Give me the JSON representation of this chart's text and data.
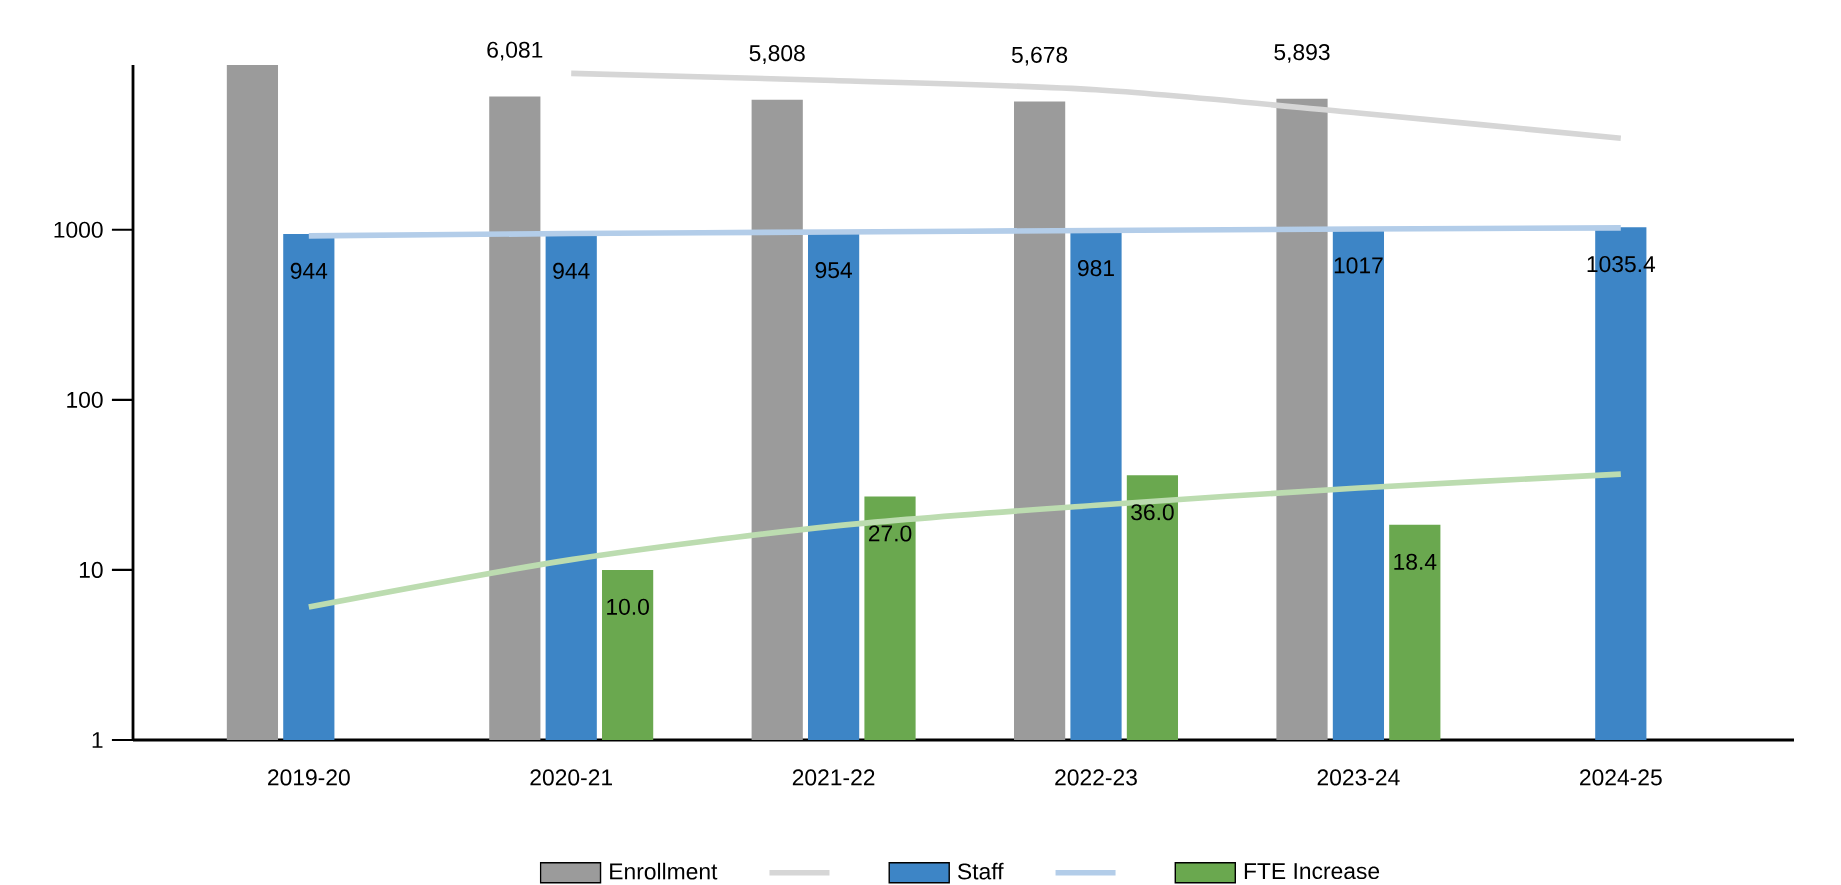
{
  "chart_data": {
    "type": "bar",
    "log": "y",
    "legend": "bottom",
    "grid": false,
    "categories": [
      "2019-20",
      "2020-21",
      "2021-22",
      "2022-23",
      "2023-24",
      "2024-25"
    ],
    "ylim": [
      1,
      9300
    ],
    "yticks": [
      1,
      10,
      100,
      1000
    ],
    "series": [
      {
        "name": "Enrollment",
        "color": "#9b9b9b",
        "values": [
          9300,
          6081,
          5808,
          5678,
          5893,
          null
        ],
        "value_labels": [
          null,
          "6,081",
          "5,808",
          "5,678",
          "5,893",
          null
        ]
      },
      {
        "type": "line",
        "color": "#d6d6d6",
        "values": [
          null,
          8300,
          7540,
          6650,
          4860,
          3450
        ]
      },
      {
        "name": "Staff",
        "color": "#3d85c6",
        "values": [
          944,
          944,
          954,
          981,
          1017,
          1035.4
        ],
        "value_labels": [
          "944",
          "944",
          "954",
          "981",
          "1017",
          "1035.4"
        ]
      },
      {
        "type": "line",
        "color": "#b3cde9",
        "values": [
          920,
          950,
          970,
          990,
          1010,
          1025
        ]
      },
      {
        "name": "FTE Increase",
        "color": "#6aa84f",
        "values": [
          null,
          10.0,
          27.0,
          36.0,
          18.4,
          null
        ],
        "value_labels": [
          null,
          "10.0",
          "27.0",
          "36.0",
          "18.4",
          null
        ]
      },
      {
        "type": "line",
        "color": "#bcdcb0",
        "values": [
          6.06,
          11.5,
          18.1,
          24,
          30.3,
          36.6
        ]
      }
    ]
  }
}
